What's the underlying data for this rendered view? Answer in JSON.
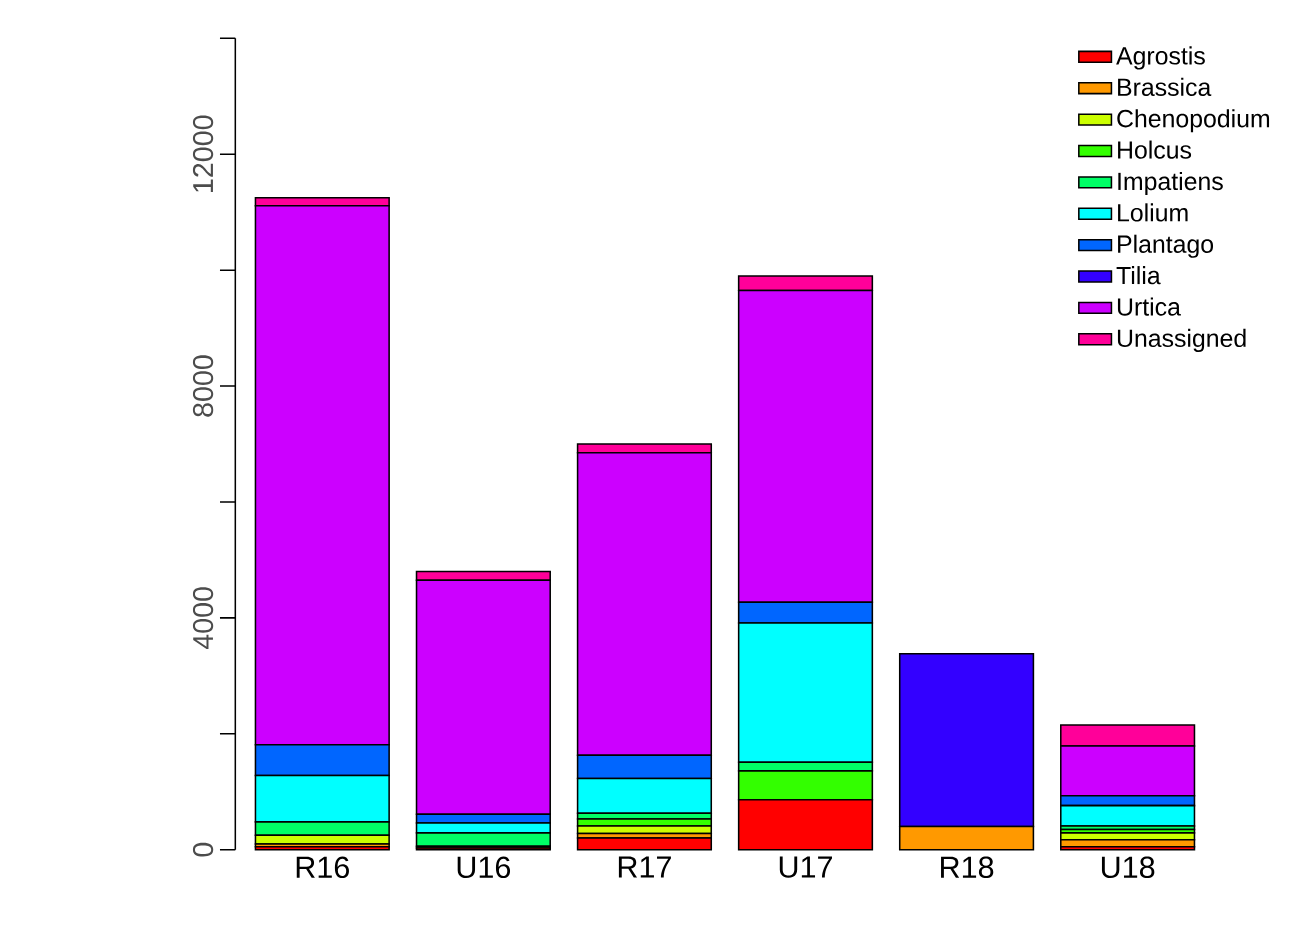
{
  "chart_data": {
    "type": "bar",
    "stacked": true,
    "categories": [
      "R16",
      "U16",
      "R17",
      "U17",
      "R18",
      "U18"
    ],
    "series": [
      {
        "name": "Agrostis",
        "color": "#ff0000",
        "values": [
          50,
          30,
          200,
          860,
          0,
          50
        ]
      },
      {
        "name": "Brassica",
        "color": "#ff9900",
        "values": [
          50,
          0,
          80,
          0,
          400,
          120
        ]
      },
      {
        "name": "Chenopodium",
        "color": "#ccff00",
        "values": [
          150,
          0,
          130,
          0,
          0,
          120
        ]
      },
      {
        "name": "Holcus",
        "color": "#33ff00",
        "values": [
          null,
          30,
          120,
          500,
          0,
          60
        ]
      },
      {
        "name": "Impatiens",
        "color": "#00ff66",
        "values": [
          230,
          230,
          100,
          150,
          0,
          60
        ]
      },
      {
        "name": "Lolium",
        "color": "#00ffff",
        "values": [
          800,
          170,
          600,
          2400,
          0,
          350
        ]
      },
      {
        "name": "Plantago",
        "color": "#0066ff",
        "values": [
          530,
          150,
          400,
          360,
          0,
          170
        ]
      },
      {
        "name": "Tilia",
        "color": "#3300ff",
        "values": [
          0,
          0,
          0,
          0,
          2980,
          0
        ]
      },
      {
        "name": "Urtica",
        "color": "#cc00ff",
        "values": [
          9300,
          4040,
          5220,
          5380,
          0,
          860
        ]
      },
      {
        "name": "Unassigned",
        "color": "#ff0099",
        "values": [
          140,
          150,
          150,
          250,
          0,
          360
        ]
      }
    ],
    "ylim": [
      0,
      14000
    ],
    "yticks": [
      0,
      {
        "value": 2000,
        "label": null
      },
      4000,
      {
        "value": 6000,
        "label": null
      },
      8000,
      {
        "value": 10000,
        "label": null
      },
      12000,
      {
        "value": 14000,
        "label": null
      }
    ],
    "legend": "top right"
  }
}
